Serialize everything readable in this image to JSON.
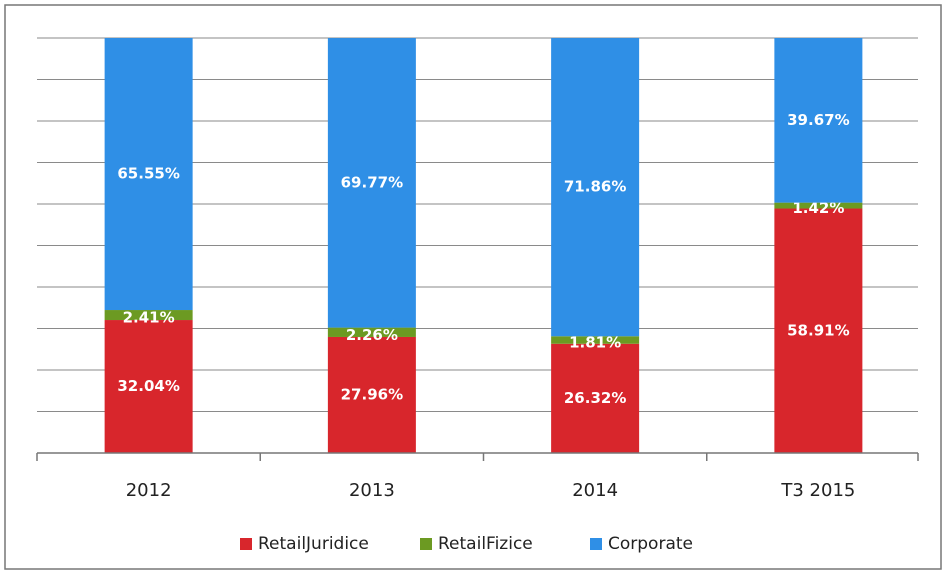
{
  "chart_data": {
    "type": "stacked_bar",
    "categories": [
      "2012",
      "2013",
      "2014",
      "T3 2015"
    ],
    "series": [
      {
        "name": "RetailJuridice",
        "color": "#d8262c",
        "values": [
          32.04,
          27.96,
          26.32,
          58.91
        ],
        "value_labels": [
          "32.04%",
          "27.96%",
          "26.32%",
          "58.91%"
        ]
      },
      {
        "name": "RetailFizice",
        "color": "#6c9a22",
        "values": [
          2.41,
          2.26,
          1.81,
          1.42
        ],
        "value_labels": [
          "2.41%",
          "2.26%",
          "1.81%",
          "1.42%"
        ]
      },
      {
        "name": "Corporate",
        "color": "#2f8fe6",
        "values": [
          65.55,
          69.77,
          71.86,
          39.67
        ],
        "value_labels": [
          "65.55%",
          "69.77%",
          "71.86%",
          "39.67%"
        ]
      }
    ],
    "ylim": [
      0,
      100
    ],
    "yticks": [
      0,
      10,
      20,
      30,
      40,
      50,
      60,
      70,
      80,
      90,
      100
    ],
    "grid": true,
    "legend": "bottom"
  }
}
